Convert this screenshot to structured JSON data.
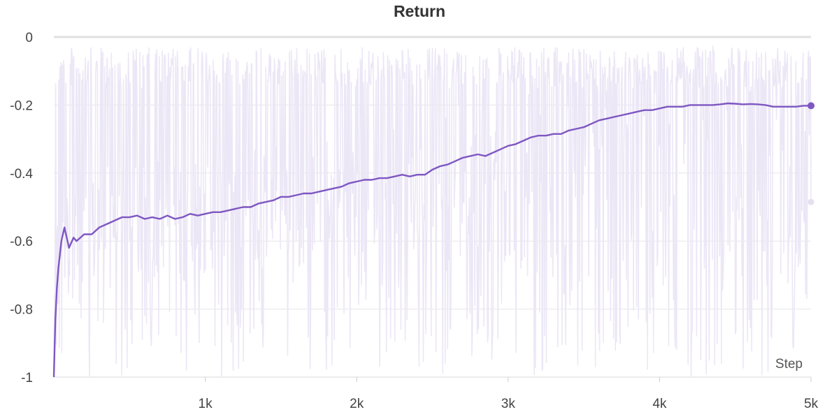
{
  "chart_data": {
    "type": "line",
    "title": "Return",
    "xlabel": "Step",
    "ylabel": "",
    "xlim": [
      0,
      5000
    ],
    "ylim": [
      -1,
      0
    ],
    "x_ticks": [
      {
        "value": 1000,
        "label": "1k"
      },
      {
        "value": 2000,
        "label": "2k"
      },
      {
        "value": 3000,
        "label": "3k"
      },
      {
        "value": 4000,
        "label": "4k"
      },
      {
        "value": 5000,
        "label": "5k"
      }
    ],
    "y_ticks": [
      {
        "value": 0,
        "label": "0"
      },
      {
        "value": -0.2,
        "label": "-0.2"
      },
      {
        "value": -0.4,
        "label": "-0.4"
      },
      {
        "value": -0.6,
        "label": "-0.6"
      },
      {
        "value": -0.8,
        "label": "-0.8"
      },
      {
        "value": -1,
        "label": "-1"
      }
    ],
    "grid": true,
    "colors": {
      "smoothed": "#7e57c2",
      "raw": "#ece7f6",
      "grid": "#e6e6e6",
      "baseline": "#e0e0e0"
    },
    "series": [
      {
        "role": "smoothed",
        "x": [
          0,
          10,
          20,
          30,
          50,
          70,
          100,
          130,
          150,
          200,
          250,
          300,
          350,
          400,
          450,
          500,
          550,
          600,
          650,
          700,
          750,
          800,
          850,
          900,
          950,
          1000,
          1050,
          1100,
          1150,
          1200,
          1250,
          1300,
          1350,
          1400,
          1450,
          1500,
          1550,
          1600,
          1650,
          1700,
          1750,
          1800,
          1850,
          1900,
          1950,
          2000,
          2050,
          2100,
          2150,
          2200,
          2250,
          2300,
          2350,
          2400,
          2450,
          2500,
          2550,
          2600,
          2650,
          2700,
          2750,
          2800,
          2850,
          2900,
          2950,
          3000,
          3050,
          3100,
          3150,
          3200,
          3250,
          3300,
          3350,
          3400,
          3450,
          3500,
          3550,
          3600,
          3650,
          3700,
          3750,
          3800,
          3850,
          3900,
          3950,
          4000,
          4050,
          4100,
          4150,
          4200,
          4250,
          4300,
          4350,
          4400,
          4450,
          4500,
          4550,
          4600,
          4650,
          4700,
          4750,
          4800,
          4850,
          4900,
          4950,
          5000
        ],
        "y": [
          -1,
          -0.83,
          -0.74,
          -0.68,
          -0.6,
          -0.56,
          -0.62,
          -0.59,
          -0.6,
          -0.58,
          -0.58,
          -0.56,
          -0.55,
          -0.54,
          -0.53,
          -0.53,
          -0.525,
          -0.535,
          -0.53,
          -0.535,
          -0.525,
          -0.535,
          -0.53,
          -0.52,
          -0.525,
          -0.52,
          -0.515,
          -0.515,
          -0.51,
          -0.505,
          -0.5,
          -0.5,
          -0.49,
          -0.485,
          -0.48,
          -0.47,
          -0.47,
          -0.465,
          -0.46,
          -0.46,
          -0.455,
          -0.45,
          -0.445,
          -0.44,
          -0.43,
          -0.425,
          -0.42,
          -0.42,
          -0.415,
          -0.415,
          -0.41,
          -0.405,
          -0.41,
          -0.405,
          -0.405,
          -0.39,
          -0.38,
          -0.375,
          -0.365,
          -0.355,
          -0.35,
          -0.345,
          -0.35,
          -0.34,
          -0.33,
          -0.32,
          -0.315,
          -0.305,
          -0.295,
          -0.29,
          -0.29,
          -0.285,
          -0.285,
          -0.275,
          -0.27,
          -0.265,
          -0.255,
          -0.245,
          -0.24,
          -0.235,
          -0.23,
          -0.225,
          -0.22,
          -0.215,
          -0.215,
          -0.21,
          -0.205,
          -0.205,
          -0.205,
          -0.2,
          -0.2,
          -0.2,
          -0.2,
          -0.198,
          -0.195,
          -0.196,
          -0.198,
          -0.197,
          -0.198,
          -0.2,
          -0.205,
          -0.205,
          -0.205,
          -0.205,
          -0.202,
          -0.202
        ]
      },
      {
        "role": "raw",
        "note_on_values": "unsmoothed per-step returns fluctuate between about -1 and -0.03 across all steps; last value about -0.49"
      }
    ],
    "last_points": {
      "smoothed": {
        "x": 5000,
        "y": -0.202
      },
      "raw": {
        "x": 5000,
        "y": -0.485
      }
    }
  }
}
